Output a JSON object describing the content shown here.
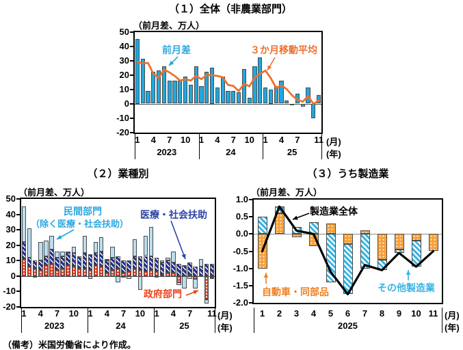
{
  "footnote": "（備考）米国労働省により作成。",
  "axis_month_label": "(月)",
  "axis_year_label": "(年)",
  "palette": {
    "bar_blue": "#21A7DE",
    "ma_orange": "#EB712F",
    "pale_blue": "#BCDFF0",
    "navy": "#25308F",
    "navy_text": "#2F44A5",
    "red": "#E8391B",
    "red_text": "#EB431B",
    "orange_text": "#F08020",
    "mfg_orange": "#F6A13C",
    "cyan": "#38B3E3",
    "black": "#000000"
  },
  "chart_data": [
    {
      "id": "chart1",
      "type": "bar",
      "title": "（１）全体（非農業部門）",
      "ylabel": "（前月差、万人）",
      "ylim": [
        -20,
        50
      ],
      "yticks": [
        "50",
        "40",
        "30",
        "20",
        "10",
        "0",
        "-10",
        "-20"
      ],
      "x_tick_labels": [
        "1",
        "4",
        "7",
        "10",
        "1",
        "4",
        "7",
        "10",
        "1",
        "4",
        "7",
        "11"
      ],
      "x_tick_slots": [
        0,
        3,
        6,
        9,
        12,
        15,
        18,
        21,
        24,
        27,
        30,
        34
      ],
      "year_labels": [
        "2023",
        "24",
        "25"
      ],
      "months_per_year": [
        12,
        12,
        11
      ],
      "grid": false,
      "series": [
        {
          "name": "前月差",
          "type": "bar",
          "style": "solid-blue",
          "color": "#21A7DE",
          "values": [
            45,
            31,
            9,
            22,
            23,
            26,
            16,
            16,
            16,
            19,
            13,
            26,
            12,
            22,
            25,
            11,
            19,
            9,
            9,
            8,
            24,
            4,
            26,
            32,
            11,
            10,
            12,
            16,
            2,
            -1,
            7,
            -2,
            11,
            -10,
            6
          ]
        },
        {
          "name": "３か月移動平均",
          "type": "line",
          "color": "#EB712F",
          "values": [
            29,
            28,
            28.3,
            20.7,
            18,
            23.7,
            21.7,
            19.3,
            16,
            17,
            16,
            19.3,
            17,
            20,
            19.7,
            19.3,
            18.3,
            13,
            12.3,
            8.7,
            13.7,
            12,
            18,
            20.7,
            23,
            17.7,
            11,
            12.7,
            10,
            5.7,
            2.7,
            1.3,
            5.3,
            -0.3,
            2.3
          ]
        }
      ]
    },
    {
      "id": "chart2",
      "type": "stacked-bar",
      "title": "（２）業種別",
      "ylabel": "（前月差、万人）",
      "ylim": [
        -20,
        50
      ],
      "yticks": [
        "50",
        "40",
        "30",
        "20",
        "10",
        "0",
        "-10",
        "-20"
      ],
      "x_tick_labels": [
        "1",
        "4",
        "7",
        "10",
        "1",
        "4",
        "7",
        "10",
        "1",
        "4",
        "7",
        "11"
      ],
      "x_tick_slots": [
        0,
        3,
        6,
        9,
        12,
        15,
        18,
        21,
        24,
        27,
        30,
        34
      ],
      "year_labels": [
        "2023",
        "24",
        "25"
      ],
      "months_per_year": [
        12,
        12,
        11
      ],
      "grid": false,
      "annotations": {
        "private_line1": "民間部門",
        "private_line2": "（除く医療・社会扶助）"
      },
      "series": [
        {
          "name": "政府部門",
          "type": "bar",
          "style": "dots-red",
          "color": "#E8391B",
          "values": [
            11,
            6,
            5,
            4,
            7,
            8,
            4,
            5,
            7,
            6,
            5,
            5,
            4,
            7,
            6,
            2,
            4,
            5,
            2,
            3,
            5,
            4,
            3,
            4,
            3,
            1,
            2,
            2,
            -4,
            0,
            1,
            -2,
            0,
            -15,
            -1
          ]
        },
        {
          "name": "医療・社会扶助",
          "type": "bar",
          "style": "hatch-navy",
          "color": "#25308F",
          "values": [
            11,
            6,
            5,
            6,
            6,
            9,
            8,
            8,
            8,
            9,
            8,
            10,
            10,
            8,
            10,
            8,
            8,
            8,
            8,
            7,
            8,
            9,
            10,
            9,
            9,
            8,
            8,
            7,
            8,
            7,
            8,
            6,
            6,
            8,
            8
          ]
        },
        {
          "name": "民間部門（除く医療・社会扶助）",
          "type": "bar",
          "style": "pale-blue",
          "color": "#BCDFF0",
          "values": [
            23,
            19,
            -1,
            12,
            10,
            9,
            4,
            3,
            1,
            4,
            0,
            11,
            -2,
            7,
            9,
            1,
            7,
            -4,
            -1,
            -2,
            11,
            -9,
            13,
            19,
            -1,
            1,
            2,
            7,
            -2,
            -8,
            -2,
            -6,
            5,
            -3,
            -1
          ]
        }
      ]
    },
    {
      "id": "chart3",
      "type": "stacked-bar+line",
      "title": "（３）うち製造業",
      "ylabel": "（前月差、万人）",
      "ylim": [
        -2.0,
        1.0
      ],
      "yticks": [
        "1.0",
        "0.5",
        "0.0",
        "-0.5",
        "-1.0",
        "-1.5",
        "-2.0"
      ],
      "x_tick_labels": [
        "1",
        "2",
        "3",
        "4",
        "5",
        "6",
        "7",
        "8",
        "9",
        "10",
        "11"
      ],
      "x_tick_slots": [
        0,
        1,
        2,
        3,
        4,
        5,
        6,
        7,
        8,
        9,
        10
      ],
      "year_labels": [
        "2025"
      ],
      "months_per_year": [
        11
      ],
      "grid": false,
      "series": [
        {
          "name": "自動車・同部品",
          "type": "bar",
          "style": "dots-orange",
          "color": "#F6A13C",
          "values": [
            -1.0,
            0.6,
            -0.1,
            -0.35,
            0.3,
            -0.3,
            0.1,
            -0.75,
            -0.45,
            -0.2,
            -0.5
          ]
        },
        {
          "name": "その他製造業",
          "type": "bar",
          "style": "hatch-cyan",
          "color": "#38B3E3",
          "values": [
            0.5,
            0.2,
            0.2,
            0.35,
            -1.4,
            -1.45,
            -1.0,
            -0.3,
            -0.1,
            -0.75,
            0
          ]
        },
        {
          "name": "製造業全体",
          "type": "line",
          "color": "#000000",
          "values": [
            -0.5,
            0.8,
            0.1,
            0,
            -1.1,
            -1.75,
            -0.9,
            -1.05,
            -0.55,
            -0.95,
            -0.5
          ]
        }
      ]
    }
  ]
}
